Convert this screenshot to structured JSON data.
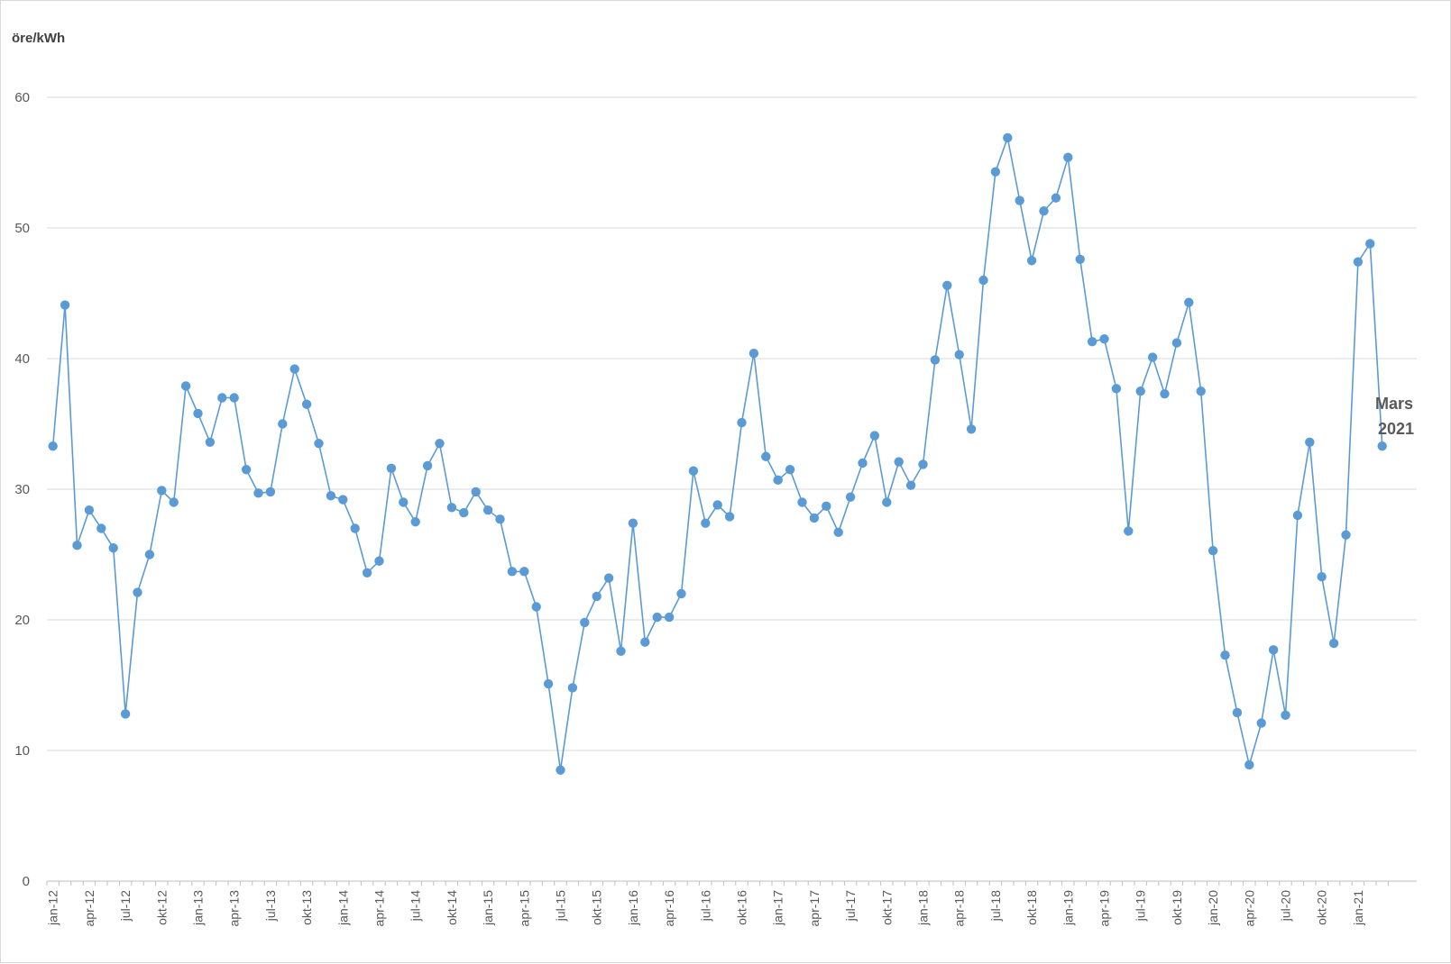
{
  "chart_data": {
    "type": "line",
    "ylabel": "öre/kWh",
    "ylim": [
      0,
      60
    ],
    "yticks": [
      0,
      10,
      20,
      30,
      40,
      50,
      60
    ],
    "grid": "horizontal",
    "color": "#5b9bd5",
    "x_tick_labels": [
      "jan-12",
      "apr-12",
      "jul-12",
      "okt-12",
      "jan-13",
      "apr-13",
      "jul-13",
      "okt-13",
      "jan-14",
      "apr-14",
      "jul-14",
      "okt-14",
      "jan-15",
      "apr-15",
      "jul-15",
      "okt-15",
      "jan-16",
      "apr-16",
      "jul-16",
      "okt-16",
      "jan-17",
      "apr-17",
      "jul-17",
      "okt-17",
      "jan-18",
      "apr-18",
      "jul-18",
      "okt-18",
      "jan-19",
      "apr-19",
      "jul-19",
      "okt-19",
      "jan-20",
      "apr-20",
      "jul-20",
      "okt-20",
      "jan-21"
    ],
    "start_month": "jan-12",
    "values": [
      33.3,
      44.1,
      25.7,
      28.4,
      27.0,
      25.5,
      12.8,
      22.1,
      25.0,
      29.9,
      29.0,
      37.9,
      35.8,
      33.6,
      37.0,
      37.0,
      31.5,
      29.7,
      29.8,
      35.0,
      39.2,
      36.5,
      33.5,
      29.5,
      29.2,
      27.0,
      23.6,
      24.5,
      31.6,
      29.0,
      27.5,
      31.8,
      33.5,
      28.6,
      28.2,
      29.8,
      28.4,
      27.7,
      23.7,
      23.7,
      21.0,
      15.1,
      8.5,
      14.8,
      19.8,
      21.8,
      23.2,
      17.6,
      27.4,
      18.3,
      20.2,
      20.2,
      22.0,
      31.4,
      27.4,
      28.8,
      27.9,
      35.1,
      40.4,
      32.5,
      30.7,
      31.5,
      29.0,
      27.8,
      28.7,
      26.7,
      29.4,
      32.0,
      34.1,
      29.0,
      32.1,
      30.3,
      31.9,
      39.9,
      45.6,
      40.3,
      34.6,
      46.0,
      54.3,
      56.9,
      52.1,
      47.5,
      51.3,
      52.3,
      55.4,
      47.6,
      41.3,
      41.5,
      37.7,
      26.8,
      37.5,
      40.1,
      37.3,
      41.2,
      44.3,
      37.5,
      25.3,
      17.3,
      12.9,
      8.9,
      12.1,
      17.7,
      12.7,
      28.0,
      33.6,
      23.3,
      18.2,
      26.5,
      47.4,
      48.8,
      33.3
    ],
    "annotation": {
      "line1": "Mars",
      "line2": "2021"
    }
  }
}
